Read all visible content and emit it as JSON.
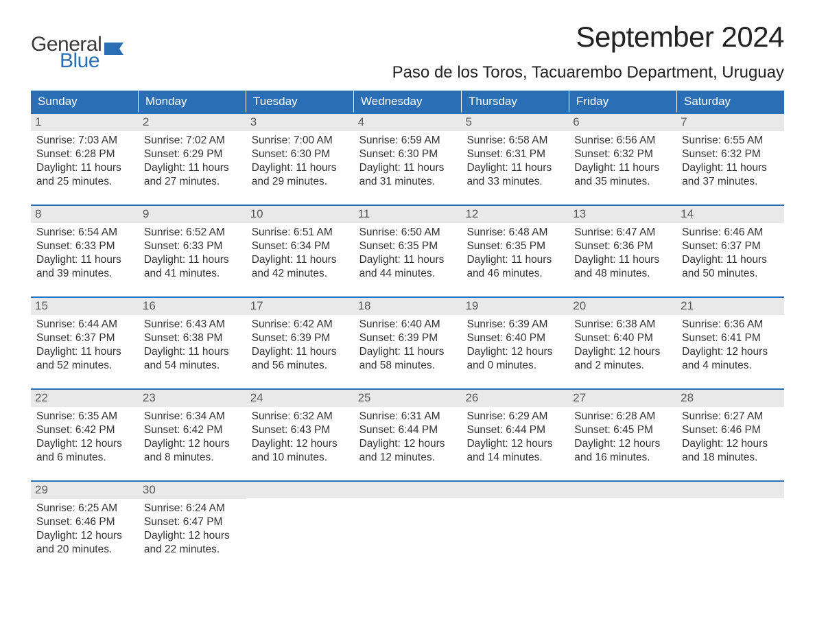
{
  "colors": {
    "accent": "#2a6fb5",
    "header_text": "#ffffff",
    "daynum_bg": "#e9e9e9",
    "daynum_text": "#5a5a5a",
    "body_text": "#333333",
    "background": "#ffffff",
    "logo_gray": "#3a3a3a"
  },
  "logo": {
    "word1": "General",
    "word2": "Blue"
  },
  "title": "September 2024",
  "location": "Paso de los Toros, Tacuarembo Department, Uruguay",
  "days_of_week": [
    "Sunday",
    "Monday",
    "Tuesday",
    "Wednesday",
    "Thursday",
    "Friday",
    "Saturday"
  ],
  "labels": {
    "sunrise": "Sunrise:",
    "sunset": "Sunset:",
    "daylight": "Daylight:"
  },
  "weeks": [
    [
      {
        "n": "1",
        "sunrise": "7:03 AM",
        "sunset": "6:28 PM",
        "daylight": "11 hours and 25 minutes."
      },
      {
        "n": "2",
        "sunrise": "7:02 AM",
        "sunset": "6:29 PM",
        "daylight": "11 hours and 27 minutes."
      },
      {
        "n": "3",
        "sunrise": "7:00 AM",
        "sunset": "6:30 PM",
        "daylight": "11 hours and 29 minutes."
      },
      {
        "n": "4",
        "sunrise": "6:59 AM",
        "sunset": "6:30 PM",
        "daylight": "11 hours and 31 minutes."
      },
      {
        "n": "5",
        "sunrise": "6:58 AM",
        "sunset": "6:31 PM",
        "daylight": "11 hours and 33 minutes."
      },
      {
        "n": "6",
        "sunrise": "6:56 AM",
        "sunset": "6:32 PM",
        "daylight": "11 hours and 35 minutes."
      },
      {
        "n": "7",
        "sunrise": "6:55 AM",
        "sunset": "6:32 PM",
        "daylight": "11 hours and 37 minutes."
      }
    ],
    [
      {
        "n": "8",
        "sunrise": "6:54 AM",
        "sunset": "6:33 PM",
        "daylight": "11 hours and 39 minutes."
      },
      {
        "n": "9",
        "sunrise": "6:52 AM",
        "sunset": "6:33 PM",
        "daylight": "11 hours and 41 minutes."
      },
      {
        "n": "10",
        "sunrise": "6:51 AM",
        "sunset": "6:34 PM",
        "daylight": "11 hours and 42 minutes."
      },
      {
        "n": "11",
        "sunrise": "6:50 AM",
        "sunset": "6:35 PM",
        "daylight": "11 hours and 44 minutes."
      },
      {
        "n": "12",
        "sunrise": "6:48 AM",
        "sunset": "6:35 PM",
        "daylight": "11 hours and 46 minutes."
      },
      {
        "n": "13",
        "sunrise": "6:47 AM",
        "sunset": "6:36 PM",
        "daylight": "11 hours and 48 minutes."
      },
      {
        "n": "14",
        "sunrise": "6:46 AM",
        "sunset": "6:37 PM",
        "daylight": "11 hours and 50 minutes."
      }
    ],
    [
      {
        "n": "15",
        "sunrise": "6:44 AM",
        "sunset": "6:37 PM",
        "daylight": "11 hours and 52 minutes."
      },
      {
        "n": "16",
        "sunrise": "6:43 AM",
        "sunset": "6:38 PM",
        "daylight": "11 hours and 54 minutes."
      },
      {
        "n": "17",
        "sunrise": "6:42 AM",
        "sunset": "6:39 PM",
        "daylight": "11 hours and 56 minutes."
      },
      {
        "n": "18",
        "sunrise": "6:40 AM",
        "sunset": "6:39 PM",
        "daylight": "11 hours and 58 minutes."
      },
      {
        "n": "19",
        "sunrise": "6:39 AM",
        "sunset": "6:40 PM",
        "daylight": "12 hours and 0 minutes."
      },
      {
        "n": "20",
        "sunrise": "6:38 AM",
        "sunset": "6:40 PM",
        "daylight": "12 hours and 2 minutes."
      },
      {
        "n": "21",
        "sunrise": "6:36 AM",
        "sunset": "6:41 PM",
        "daylight": "12 hours and 4 minutes."
      }
    ],
    [
      {
        "n": "22",
        "sunrise": "6:35 AM",
        "sunset": "6:42 PM",
        "daylight": "12 hours and 6 minutes."
      },
      {
        "n": "23",
        "sunrise": "6:34 AM",
        "sunset": "6:42 PM",
        "daylight": "12 hours and 8 minutes."
      },
      {
        "n": "24",
        "sunrise": "6:32 AM",
        "sunset": "6:43 PM",
        "daylight": "12 hours and 10 minutes."
      },
      {
        "n": "25",
        "sunrise": "6:31 AM",
        "sunset": "6:44 PM",
        "daylight": "12 hours and 12 minutes."
      },
      {
        "n": "26",
        "sunrise": "6:29 AM",
        "sunset": "6:44 PM",
        "daylight": "12 hours and 14 minutes."
      },
      {
        "n": "27",
        "sunrise": "6:28 AM",
        "sunset": "6:45 PM",
        "daylight": "12 hours and 16 minutes."
      },
      {
        "n": "28",
        "sunrise": "6:27 AM",
        "sunset": "6:46 PM",
        "daylight": "12 hours and 18 minutes."
      }
    ],
    [
      {
        "n": "29",
        "sunrise": "6:25 AM",
        "sunset": "6:46 PM",
        "daylight": "12 hours and 20 minutes."
      },
      {
        "n": "30",
        "sunrise": "6:24 AM",
        "sunset": "6:47 PM",
        "daylight": "12 hours and 22 minutes."
      },
      null,
      null,
      null,
      null,
      null
    ]
  ]
}
